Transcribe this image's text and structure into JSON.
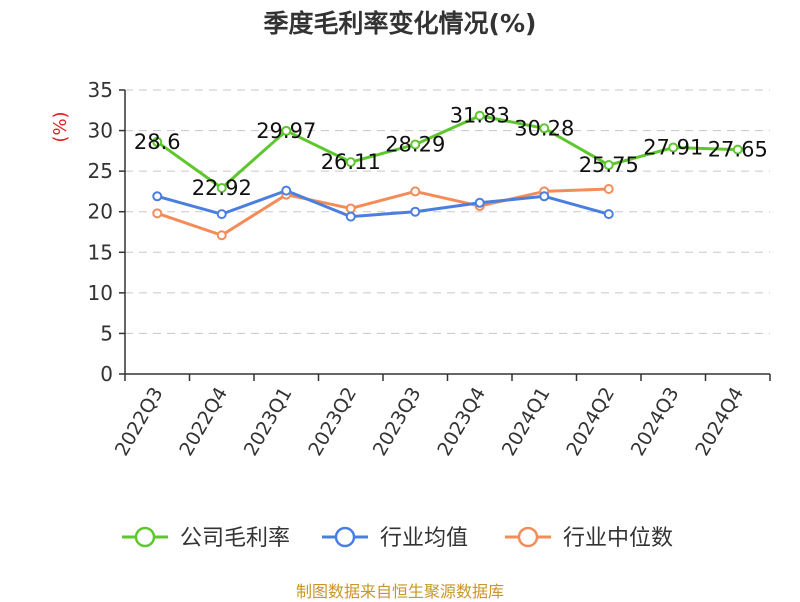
{
  "title": "季度毛利率变化情况(%)",
  "source_note": "制图数据来自恒生聚源数据库",
  "colors": {
    "company": "#5ec72e",
    "industry_avg": "#4a7fe0",
    "industry_median": "#f48c5a",
    "unit_label": "#dd2222"
  },
  "chart_data": {
    "type": "line",
    "title": "季度毛利率变化情况(%)",
    "ylabel": "(%)",
    "xlabel": "",
    "ylim": [
      0,
      35
    ],
    "yticks": [
      0,
      5,
      10,
      15,
      20,
      25,
      30,
      35
    ],
    "grid": "horizontal dashed",
    "legend_position": "bottom",
    "categories": [
      "2022Q3",
      "2022Q4",
      "2023Q1",
      "2023Q2",
      "2023Q3",
      "2023Q4",
      "2024Q1",
      "2024Q2",
      "2024Q3",
      "2024Q4"
    ],
    "series": [
      {
        "name": "公司毛利率",
        "key": "company",
        "values": [
          28.6,
          22.92,
          29.97,
          26.11,
          28.29,
          31.83,
          30.28,
          25.75,
          27.91,
          27.65
        ],
        "labels": [
          "28.6",
          "22.92",
          "29.97",
          "26.11",
          "28.29",
          "31.83",
          "30.28",
          "25.75",
          "27.91",
          "27.65"
        ]
      },
      {
        "name": "行业均值",
        "key": "industry_avg",
        "values": [
          21.9,
          19.7,
          22.6,
          19.4,
          20.0,
          21.1,
          21.9,
          19.7,
          null,
          null
        ]
      },
      {
        "name": "行业中位数",
        "key": "industry_median",
        "values": [
          19.8,
          17.1,
          22.1,
          20.4,
          22.5,
          20.7,
          22.5,
          22.8,
          null,
          null
        ]
      }
    ]
  }
}
